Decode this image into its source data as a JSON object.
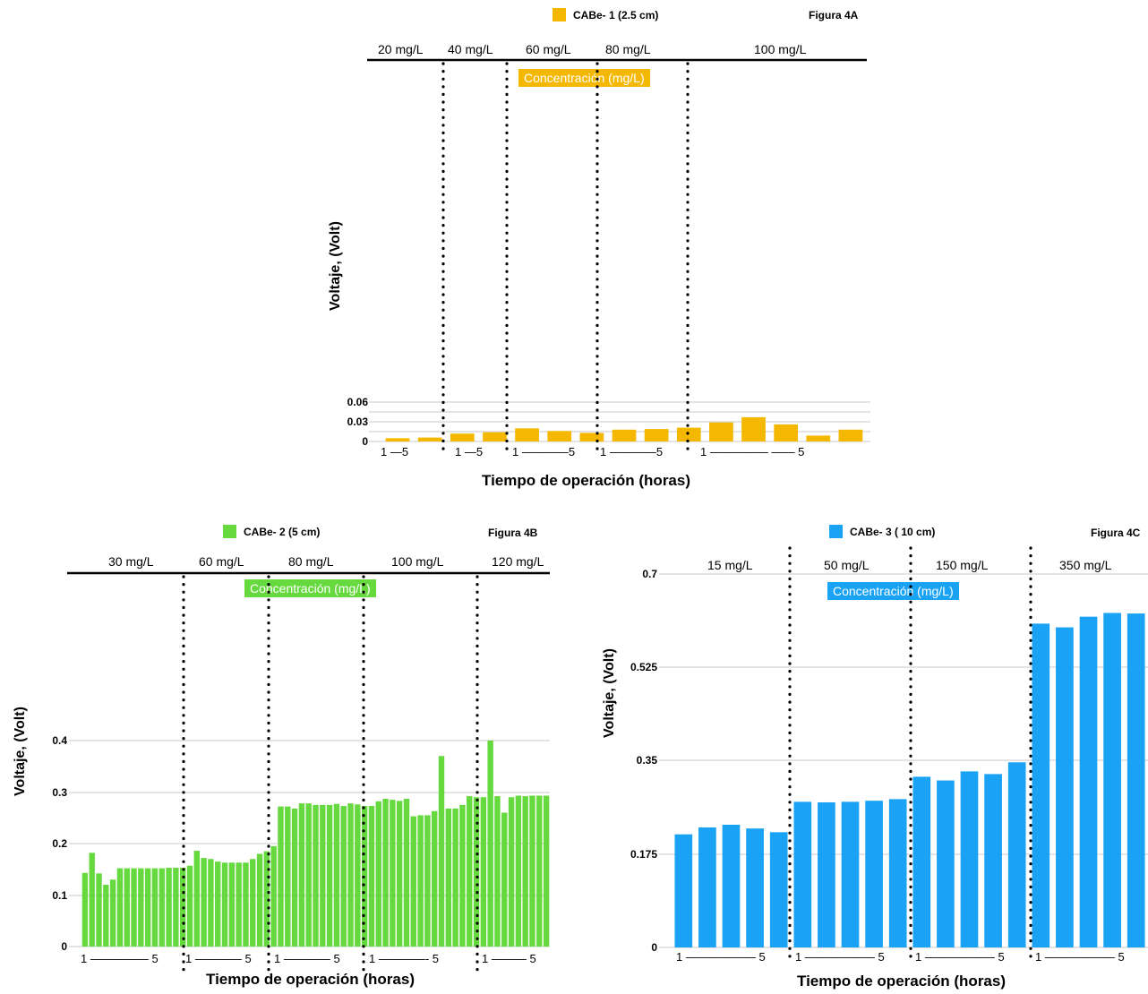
{
  "chart_data": [
    {
      "type": "bar",
      "figure_label": "Figura 4A",
      "legend": "CABe- 1 (2.5 cm)",
      "color": "#F5B800",
      "concentration_title": "Concentración (mg/L)",
      "concentrations": [
        "20 mg/L",
        "40 mg/L",
        "60 mg/L",
        "80 mg/L",
        "100 mg/L"
      ],
      "ylabel": "Voltaje, (Volt)",
      "xlabel": "Tiempo de operación (horas)",
      "yticks": [
        "0.06",
        "0.03",
        "0"
      ],
      "ylim": [
        0,
        0.06
      ],
      "hour_labels": [
        "1 —5",
        "1 —5",
        "1 ————5",
        "1 ————5",
        "1 ————— —— 5"
      ],
      "values": [
        0.005,
        0.006,
        0.012,
        0.014,
        0.02,
        0.016,
        0.013,
        0.018,
        0.019,
        0.021,
        0.029,
        0.037,
        0.026,
        0.009,
        0.018
      ]
    },
    {
      "type": "bar",
      "figure_label": "Figura 4B",
      "legend": "CABe- 2 (5 cm)",
      "color": "#66D93F",
      "concentration_title": "Concentración (mg/L)",
      "concentrations": [
        "30 mg/L",
        "60 mg/L",
        "80 mg/L",
        "100 mg/L",
        "120 mg/L"
      ],
      "ylabel": "Voltaje, (Volt)",
      "xlabel": "Tiempo de operación (horas)",
      "yticks": [
        "0.4",
        "0.3",
        "0.2",
        "0.1",
        "0"
      ],
      "ylim": [
        0,
        0.4
      ],
      "hour_labels": [
        "1 ————— 5",
        "1 ———— 5",
        "1 ———— 5",
        "1 ————- 5",
        "1 ——— 5"
      ],
      "values": [
        0.143,
        0.182,
        0.142,
        0.12,
        0.13,
        0.152,
        0.152,
        0.152,
        0.152,
        0.152,
        0.152,
        0.152,
        0.153,
        0.153,
        0.153,
        0.157,
        0.186,
        0.172,
        0.17,
        0.165,
        0.163,
        0.163,
        0.163,
        0.163,
        0.17,
        0.18,
        0.185,
        0.195,
        0.272,
        0.272,
        0.268,
        0.278,
        0.278,
        0.275,
        0.275,
        0.275,
        0.277,
        0.273,
        0.278,
        0.276,
        0.273,
        0.273,
        0.282,
        0.287,
        0.285,
        0.283,
        0.287,
        0.253,
        0.255,
        0.255,
        0.263,
        0.37,
        0.268,
        0.268,
        0.275,
        0.292,
        0.29,
        0.29,
        0.4,
        0.292,
        0.26,
        0.29,
        0.293,
        0.292,
        0.293,
        0.293,
        0.293
      ]
    },
    {
      "type": "bar",
      "figure_label": "Figura 4C",
      "legend": "CABe- 3 ( 10 cm)",
      "color": "#1AA3F5",
      "concentration_title": "Concentración (mg/L)",
      "concentrations": [
        "15 mg/L",
        "50 mg/L",
        "150 mg/L",
        "350 mg/L"
      ],
      "ylabel": "Voltaje, (Volt)",
      "xlabel": "Tiempo de operación (horas)",
      "yticks": [
        "0.7",
        "0.525",
        "0.35",
        "0.175",
        "0"
      ],
      "ylim": [
        0,
        0.7
      ],
      "hour_labels": [
        "1 —————— 5",
        "1 —————— 5",
        "1 —————— 5",
        "1 —————— 5"
      ],
      "values": [
        0.212,
        0.225,
        0.23,
        0.223,
        0.216,
        0.273,
        0.272,
        0.273,
        0.275,
        0.278,
        0.32,
        0.313,
        0.33,
        0.325,
        0.347,
        0.607,
        0.6,
        0.62,
        0.627,
        0.626
      ]
    }
  ]
}
